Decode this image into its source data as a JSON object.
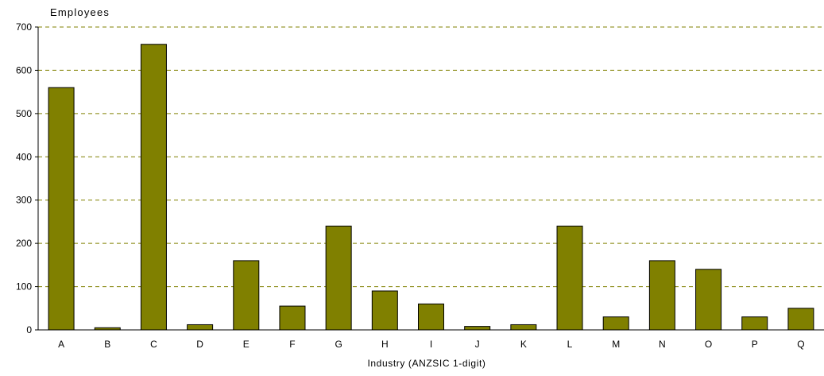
{
  "chart_data": {
    "type": "bar",
    "title": "Employees",
    "xlabel": "Industry (ANZSIC 1-digit)",
    "ylabel": "",
    "ylim": [
      0,
      700
    ],
    "yticks": [
      "0",
      "100",
      "200",
      "300",
      "400",
      "500",
      "600",
      "700"
    ],
    "categories": [
      "A",
      "B",
      "C",
      "D",
      "E",
      "F",
      "G",
      "H",
      "I",
      "J",
      "K",
      "L",
      "M",
      "N",
      "O",
      "P",
      "Q"
    ],
    "values": [
      560,
      5,
      660,
      12,
      160,
      55,
      240,
      90,
      60,
      8,
      12,
      240,
      30,
      160,
      140,
      30,
      50
    ],
    "grid": true,
    "bar_color": "#808000",
    "grid_color": "#808000"
  }
}
